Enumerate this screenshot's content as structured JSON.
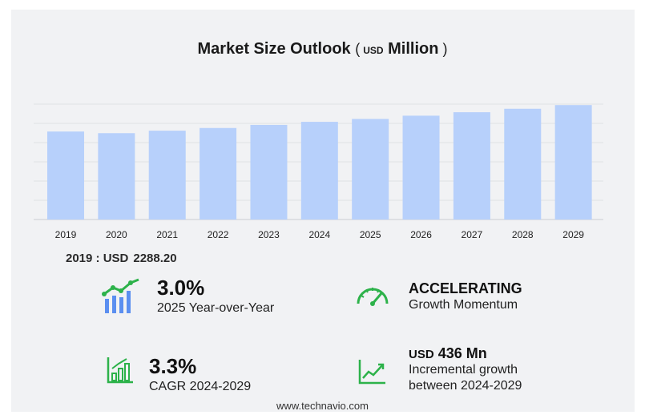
{
  "chart_data": {
    "type": "bar",
    "title": "Market Size Outlook",
    "unit_prefix": "USD",
    "unit_suffix": "Million",
    "categories": [
      "2019",
      "2020",
      "2021",
      "2022",
      "2023",
      "2024",
      "2025",
      "2026",
      "2027",
      "2028",
      "2029"
    ],
    "values": [
      2288.2,
      2245,
      2310,
      2380,
      2460,
      2540,
      2615,
      2700,
      2790,
      2880,
      2975
    ],
    "ylim": [
      0,
      3000
    ],
    "grid": true,
    "bar_color": "#b7d0fb"
  },
  "base": {
    "label": "2019 : USD",
    "value": "2288.20"
  },
  "kpis": {
    "yoy": {
      "value": "3.0%",
      "label": "2025 Year-over-Year"
    },
    "momentum": {
      "value": "ACCELERATING",
      "label": "Growth Momentum"
    },
    "cagr": {
      "value": "3.3%",
      "label": "CAGR 2024-2029"
    },
    "incremental": {
      "prefix": "USD",
      "value": "436 Mn",
      "label1": "Incremental growth",
      "label2": "between 2024-2029"
    }
  },
  "icons": {
    "yoy": "bar-growth-icon",
    "momentum": "speedometer-icon",
    "cagr": "bar-chart-icon",
    "incremental": "trend-line-icon",
    "accent": "#2db24a",
    "accent_blue": "#5b8ff0"
  },
  "footer": "www.technavio.com"
}
